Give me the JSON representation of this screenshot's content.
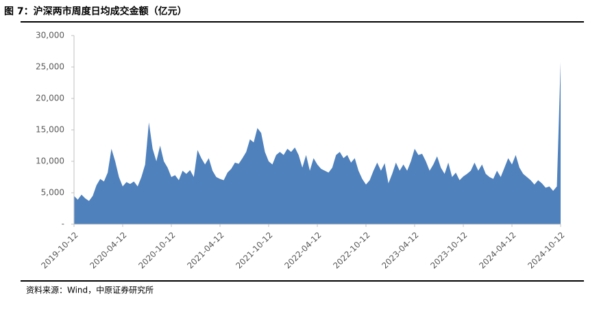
{
  "chart_data": {
    "type": "area",
    "title": "图 7：沪深两市周度日均成交金额（亿元）",
    "source": "资料来源：Wind，中原证券研究所",
    "color": "#4f81bd",
    "categories": [
      "2019-10-12",
      null,
      null,
      null,
      null,
      null,
      null,
      null,
      null,
      null,
      null,
      null,
      null,
      "2020-04-12",
      null,
      null,
      null,
      null,
      null,
      null,
      null,
      null,
      null,
      null,
      null,
      null,
      "2020-10-12",
      null,
      null,
      null,
      null,
      null,
      null,
      null,
      null,
      null,
      null,
      null,
      null,
      "2021-04-12",
      null,
      null,
      null,
      null,
      null,
      null,
      null,
      null,
      null,
      null,
      null,
      null,
      "2021-10-12",
      null,
      null,
      null,
      null,
      null,
      null,
      null,
      null,
      null,
      null,
      null,
      null,
      "2022-04-12",
      null,
      null,
      null,
      null,
      null,
      null,
      null,
      null,
      null,
      null,
      null,
      null,
      "2022-10-12",
      null,
      null,
      null,
      null,
      null,
      null,
      null,
      null,
      null,
      null,
      null,
      null,
      "2023-04-12",
      null,
      null,
      null,
      null,
      null,
      null,
      null,
      null,
      null,
      null,
      null,
      null,
      "2023-10-12",
      null,
      null,
      null,
      null,
      null,
      null,
      null,
      null,
      null,
      null,
      null,
      null,
      "2024-04-12",
      null,
      null,
      null,
      null,
      null,
      null,
      null,
      null,
      null,
      null,
      null,
      null,
      "2024-10-12"
    ],
    "values": [
      4500,
      3900,
      4700,
      4100,
      3700,
      4500,
      6200,
      7200,
      6800,
      8200,
      12000,
      10000,
      7500,
      6000,
      6700,
      6400,
      6800,
      6000,
      7500,
      9500,
      16200,
      12000,
      10000,
      12500,
      10000,
      9000,
      7500,
      7800,
      7000,
      8500,
      8000,
      8600,
      7500,
      11800,
      10500,
      9500,
      10500,
      8500,
      7500,
      7200,
      7000,
      8200,
      8800,
      9800,
      9600,
      10500,
      11500,
      13500,
      13000,
      15300,
      14500,
      11500,
      10000,
      9500,
      11000,
      11500,
      11000,
      12000,
      11500,
      12200,
      11000,
      9000,
      11000,
      8500,
      10500,
      9500,
      8800,
      8500,
      8200,
      9000,
      11000,
      11500,
      10500,
      11000,
      9800,
      10500,
      8500,
      7200,
      6300,
      7000,
      8500,
      9800,
      8500,
      9700,
      6500,
      8000,
      9800,
      8500,
      9500,
      8500,
      10000,
      12000,
      11000,
      11200,
      10000,
      8500,
      9500,
      10800,
      9000,
      8000,
      9800,
      7500,
      8200,
      7000,
      7600,
      8000,
      8500,
      9800,
      8500,
      9500,
      8000,
      7500,
      7200,
      8500,
      7500,
      9000,
      10500,
      9500,
      11000,
      9000,
      8000,
      7500,
      7000,
      6300,
      7000,
      6500,
      5800,
      6000,
      5300,
      6000,
      25800
    ],
    "ylim": [
      0,
      30000
    ],
    "yticks": [
      {
        "value": 0,
        "label": "-"
      },
      {
        "value": 5000,
        "label": "5,000"
      },
      {
        "value": 10000,
        "label": "10,000"
      },
      {
        "value": 15000,
        "label": "15,000"
      },
      {
        "value": 20000,
        "label": "20,000"
      },
      {
        "value": 25000,
        "label": "25,000"
      },
      {
        "value": 30000,
        "label": "30,000"
      }
    ]
  }
}
